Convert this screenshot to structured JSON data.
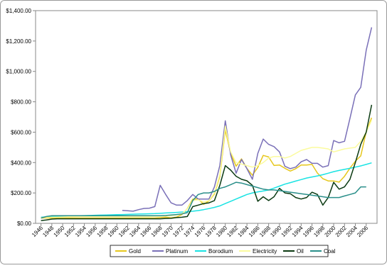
{
  "chart_data": {
    "type": "line",
    "x": [
      1946,
      1947,
      1948,
      1949,
      1950,
      1951,
      1952,
      1953,
      1954,
      1955,
      1956,
      1957,
      1958,
      1959,
      1960,
      1961,
      1962,
      1963,
      1964,
      1965,
      1966,
      1967,
      1968,
      1969,
      1970,
      1971,
      1972,
      1973,
      1974,
      1975,
      1976,
      1977,
      1978,
      1979,
      1980,
      1981,
      1982,
      1983,
      1984,
      1985,
      1986,
      1987,
      1988,
      1989,
      1990,
      1991,
      1992,
      1993,
      1994,
      1995,
      1996,
      1997,
      1998,
      1999,
      2000,
      2001,
      2002,
      2003,
      2004,
      2005,
      2006,
      2007
    ],
    "xlim": [
      1945,
      2008
    ],
    "xticks": [
      1946,
      1948,
      1950,
      1952,
      1954,
      1956,
      1958,
      1960,
      1962,
      1964,
      1966,
      1968,
      1970,
      1972,
      1974,
      1976,
      1978,
      1980,
      1982,
      1984,
      1986,
      1988,
      1990,
      1992,
      1994,
      1996,
      1998,
      2000,
      2002,
      2004,
      2006
    ],
    "ylim": [
      0,
      1400
    ],
    "yticks": [
      {
        "value": 0,
        "label": "$0.00"
      },
      {
        "value": 200,
        "label": "$200.00"
      },
      {
        "value": 400,
        "label": "$400.00"
      },
      {
        "value": 600,
        "label": "$600.00"
      },
      {
        "value": 800,
        "label": "$800.00"
      },
      {
        "value": 1000,
        "label": "$1,000.00"
      },
      {
        "value": 1200,
        "label": "$1,200.00"
      },
      {
        "value": 1400,
        "label": "$1,400.00"
      }
    ],
    "legend": "bottom",
    "series": [
      {
        "name": "Gold",
        "color": "#e6c71c",
        "values": [
          35,
          35,
          35,
          35,
          35,
          35,
          35,
          35,
          35,
          35,
          35,
          35,
          35,
          35,
          35,
          35,
          35,
          35,
          35,
          35,
          35,
          35,
          38,
          40,
          36,
          41,
          58,
          97,
          159,
          161,
          125,
          148,
          193,
          307,
          615,
          460,
          376,
          424,
          361,
          317,
          368,
          447,
          437,
          381,
          384,
          362,
          344,
          360,
          384,
          384,
          388,
          331,
          294,
          279,
          279,
          271,
          310,
          363,
          409,
          444,
          603,
          695
        ]
      },
      {
        "name": "Platinum",
        "color": "#7a70b8",
        "values": [
          null,
          null,
          null,
          null,
          null,
          null,
          null,
          null,
          null,
          null,
          null,
          null,
          null,
          null,
          null,
          85,
          83,
          80,
          90,
          98,
          100,
          110,
          250,
          190,
          135,
          120,
          120,
          150,
          190,
          160,
          160,
          160,
          240,
          380,
          675,
          450,
          330,
          420,
          360,
          290,
          460,
          555,
          520,
          505,
          470,
          375,
          360,
          370,
          405,
          420,
          395,
          395,
          370,
          380,
          545,
          530,
          540,
          690,
          845,
          895,
          1140,
          1290
        ]
      },
      {
        "name": "Borodium",
        "color": "#19e3e3",
        "values": [
          40,
          42,
          44,
          46,
          47,
          48,
          49,
          50,
          51,
          52,
          53,
          54,
          55,
          56,
          57,
          58,
          59,
          60,
          61,
          62,
          63,
          64,
          66,
          68,
          70,
          72,
          74,
          77,
          80,
          84,
          90,
          97,
          105,
          115,
          130,
          145,
          160,
          175,
          190,
          200,
          207,
          213,
          220,
          232,
          245,
          258,
          268,
          278,
          288,
          298,
          305,
          312,
          320,
          330,
          340,
          348,
          355,
          362,
          370,
          378,
          388,
          398
        ]
      },
      {
        "name": "Electricity",
        "color": "#fbfb9e",
        "values": [
          38,
          39,
          40,
          41,
          42,
          43,
          44,
          45,
          45,
          45,
          45,
          45,
          45,
          45,
          45,
          45,
          45,
          45,
          45,
          45,
          45,
          46,
          47,
          48,
          50,
          55,
          62,
          95,
          150,
          155,
          140,
          150,
          200,
          320,
          640,
          470,
          400,
          390,
          380,
          370,
          380,
          400,
          430,
          440,
          440,
          430,
          440,
          460,
          480,
          490,
          500,
          500,
          495,
          490,
          470,
          480,
          490,
          495,
          500,
          540,
          600,
          680
        ]
      },
      {
        "name": "Oil",
        "color": "#0b3a12",
        "values": [
          18,
          22,
          28,
          30,
          30,
          30,
          30,
          30,
          30,
          30,
          30,
          30,
          30,
          30,
          30,
          30,
          30,
          30,
          30,
          30,
          30,
          30,
          30,
          32,
          33,
          38,
          40,
          45,
          110,
          120,
          130,
          135,
          150,
          250,
          380,
          350,
          310,
          290,
          280,
          250,
          145,
          175,
          150,
          175,
          230,
          200,
          195,
          170,
          160,
          170,
          205,
          190,
          120,
          170,
          270,
          225,
          240,
          290,
          400,
          520,
          600,
          780
        ]
      },
      {
        "name": "Coal",
        "color": "#2a8f8a",
        "values": [
          35,
          45,
          50,
          50,
          50,
          50,
          50,
          50,
          50,
          50,
          50,
          50,
          50,
          50,
          50,
          50,
          50,
          50,
          50,
          50,
          50,
          50,
          50,
          52,
          55,
          58,
          62,
          70,
          150,
          190,
          200,
          200,
          210,
          230,
          240,
          255,
          270,
          265,
          255,
          245,
          235,
          225,
          220,
          220,
          215,
          210,
          205,
          200,
          195,
          190,
          185,
          180,
          175,
          170,
          170,
          170,
          180,
          190,
          200,
          240,
          240,
          null
        ]
      }
    ]
  }
}
